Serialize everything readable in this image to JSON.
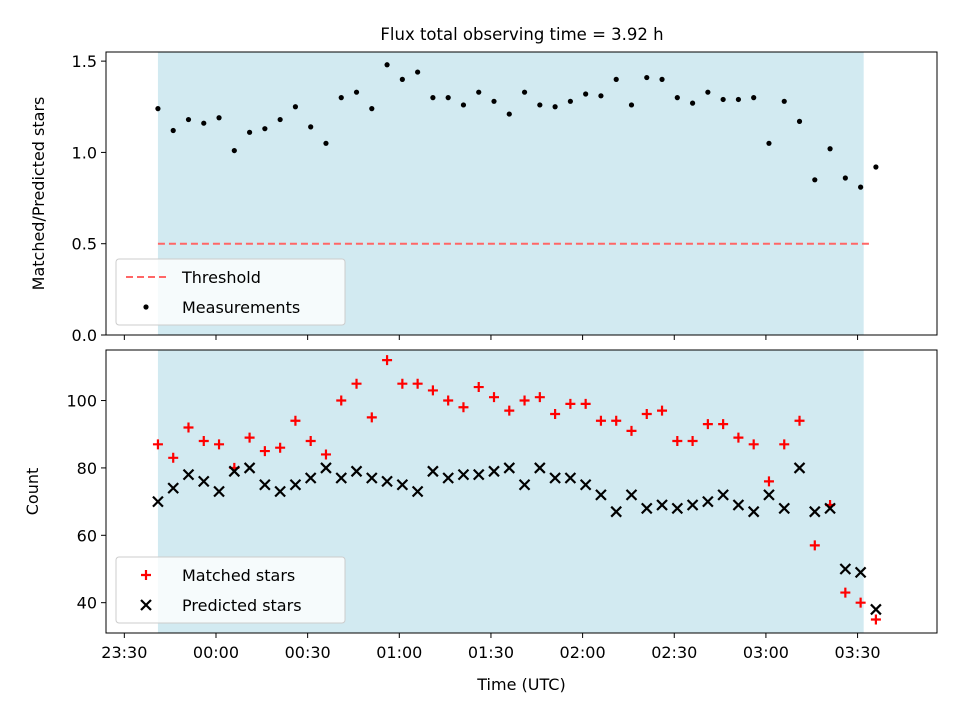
{
  "title": "Flux total observing time = 3.92 h",
  "colors": {
    "band": "#add8e6",
    "threshold": "#ff6666",
    "matched": "#ff0000",
    "predicted": "#000000",
    "measurement": "#000000"
  },
  "chart_data": [
    {
      "type": "scatter",
      "name": "ratio-panel",
      "ylabel": "Matched/Predicted stars",
      "xlabel": "",
      "xlim": [
        "23:24",
        "03:56"
      ],
      "ylim": [
        0,
        1.55
      ],
      "yticks": [
        "0.0",
        "0.5",
        "1.0",
        "1.5"
      ],
      "ytick_values": [
        0,
        0.5,
        1.0,
        1.5
      ],
      "grid": false,
      "legend": "lower-left",
      "shaded_interval": [
        "23:41",
        "03:32"
      ],
      "series": [
        {
          "name": "Threshold",
          "kind": "dashed-line",
          "x": [
            "23:41",
            "03:35"
          ],
          "y": [
            0.5,
            0.5
          ]
        },
        {
          "name": "Measurements",
          "kind": "dot",
          "x": [
            "23:41",
            "23:46",
            "23:51",
            "23:56",
            "00:01",
            "00:06",
            "00:11",
            "00:16",
            "00:21",
            "00:26",
            "00:31",
            "00:36",
            "00:41",
            "00:46",
            "00:51",
            "00:56",
            "01:01",
            "01:06",
            "01:11",
            "01:16",
            "01:21",
            "01:26",
            "01:31",
            "01:36",
            "01:41",
            "01:46",
            "01:51",
            "01:56",
            "02:01",
            "02:06",
            "02:11",
            "02:16",
            "02:21",
            "02:26",
            "02:31",
            "02:36",
            "02:41",
            "02:46",
            "02:51",
            "02:56",
            "03:01",
            "03:06",
            "03:11",
            "03:16",
            "03:21",
            "03:26",
            "03:31",
            "03:36"
          ],
          "y": [
            1.24,
            1.12,
            1.18,
            1.16,
            1.19,
            1.01,
            1.11,
            1.13,
            1.18,
            1.25,
            1.14,
            1.05,
            1.3,
            1.33,
            1.24,
            1.48,
            1.4,
            1.44,
            1.3,
            1.3,
            1.26,
            1.33,
            1.28,
            1.21,
            1.33,
            1.26,
            1.25,
            1.28,
            1.32,
            1.31,
            1.4,
            1.26,
            1.41,
            1.4,
            1.3,
            1.27,
            1.33,
            1.29,
            1.29,
            1.3,
            1.05,
            1.28,
            1.17,
            0.85,
            1.02,
            0.86,
            0.81,
            0.92
          ]
        }
      ]
    },
    {
      "type": "scatter",
      "name": "count-panel",
      "ylabel": "Count",
      "xlabel": "Time (UTC)",
      "xlim": [
        "23:24",
        "03:56"
      ],
      "ylim": [
        31,
        115
      ],
      "yticks": [
        "40",
        "60",
        "80",
        "100"
      ],
      "ytick_values": [
        40,
        60,
        80,
        100
      ],
      "xticks": [
        "23:30",
        "00:00",
        "00:30",
        "01:00",
        "01:30",
        "02:00",
        "02:30",
        "03:00",
        "03:30"
      ],
      "grid": false,
      "legend": "lower-left",
      "shaded_interval": [
        "23:41",
        "03:32"
      ],
      "series": [
        {
          "name": "Matched stars",
          "kind": "plus",
          "x": [
            "23:41",
            "23:46",
            "23:51",
            "23:56",
            "00:01",
            "00:06",
            "00:11",
            "00:16",
            "00:21",
            "00:26",
            "00:31",
            "00:36",
            "00:41",
            "00:46",
            "00:51",
            "00:56",
            "01:01",
            "01:06",
            "01:11",
            "01:16",
            "01:21",
            "01:26",
            "01:31",
            "01:36",
            "01:41",
            "01:46",
            "01:51",
            "01:56",
            "02:01",
            "02:06",
            "02:11",
            "02:16",
            "02:21",
            "02:26",
            "02:31",
            "02:36",
            "02:41",
            "02:46",
            "02:51",
            "02:56",
            "03:01",
            "03:06",
            "03:11",
            "03:16",
            "03:21",
            "03:26",
            "03:31",
            "03:36"
          ],
          "y": [
            87,
            83,
            92,
            88,
            87,
            80,
            89,
            85,
            86,
            94,
            88,
            84,
            100,
            105,
            95,
            112,
            105,
            105,
            103,
            100,
            98,
            104,
            101,
            97,
            100,
            101,
            96,
            99,
            99,
            94,
            94,
            91,
            96,
            97,
            88,
            88,
            93,
            93,
            89,
            87,
            76,
            87,
            94,
            57,
            69,
            43,
            40,
            35
          ]
        },
        {
          "name": "Predicted stars",
          "kind": "x",
          "x": [
            "23:41",
            "23:46",
            "23:51",
            "23:56",
            "00:01",
            "00:06",
            "00:11",
            "00:16",
            "00:21",
            "00:26",
            "00:31",
            "00:36",
            "00:41",
            "00:46",
            "00:51",
            "00:56",
            "01:01",
            "01:06",
            "01:11",
            "01:16",
            "01:21",
            "01:26",
            "01:31",
            "01:36",
            "01:41",
            "01:46",
            "01:51",
            "01:56",
            "02:01",
            "02:06",
            "02:11",
            "02:16",
            "02:21",
            "02:26",
            "02:31",
            "02:36",
            "02:41",
            "02:46",
            "02:51",
            "02:56",
            "03:01",
            "03:06",
            "03:11",
            "03:16",
            "03:21",
            "03:26",
            "03:31",
            "03:36"
          ],
          "y": [
            70,
            74,
            78,
            76,
            73,
            79,
            80,
            75,
            73,
            75,
            77,
            80,
            77,
            79,
            77,
            76,
            75,
            73,
            79,
            77,
            78,
            78,
            79,
            80,
            75,
            80,
            77,
            77,
            75,
            72,
            67,
            72,
            68,
            69,
            68,
            69,
            70,
            72,
            69,
            67,
            72,
            68,
            80,
            67,
            68,
            50,
            49,
            38
          ]
        }
      ]
    }
  ]
}
